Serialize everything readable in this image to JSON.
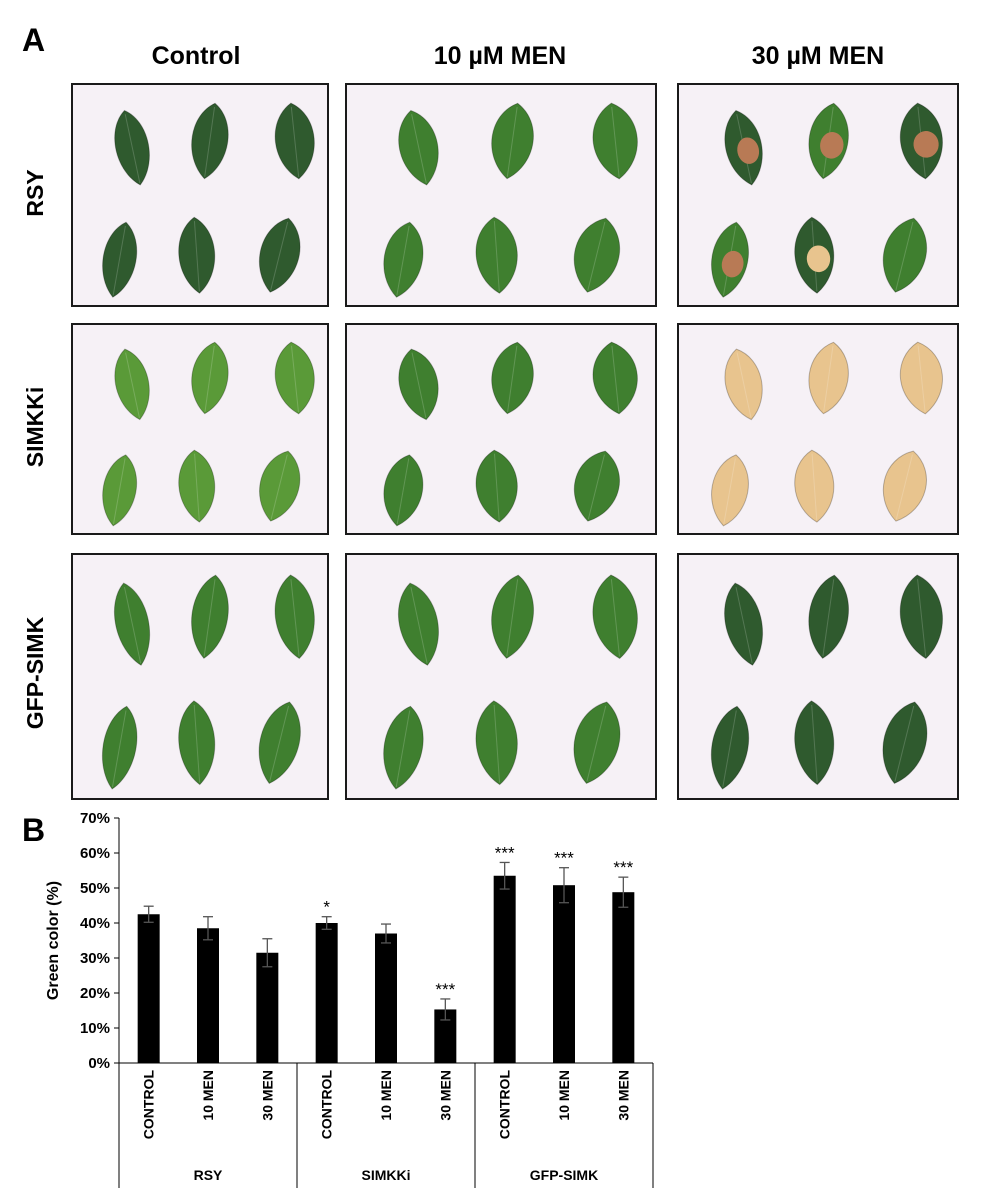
{
  "panel_a": {
    "letter": "A",
    "columns": [
      "Control",
      "10 µM MEN",
      "30 µM MEN"
    ],
    "rows": [
      "RSY",
      "SIMKKi",
      "GFP-SIMK"
    ],
    "leaf_colors": {
      "green_dark": "#2f5a2e",
      "green": "#3f7f2f",
      "green_light": "#5a9a38",
      "necrotic": "#b87a55",
      "bleached": "#e8c48e",
      "background": "#f6f1f6"
    },
    "photos": [
      [
        {
          "state": "green_dark"
        },
        {
          "state": "green"
        },
        {
          "state": "mixed"
        }
      ],
      [
        {
          "state": "green_light"
        },
        {
          "state": "green"
        },
        {
          "state": "bleached"
        }
      ],
      [
        {
          "state": "green"
        },
        {
          "state": "green"
        },
        {
          "state": "green_dark"
        }
      ]
    ]
  },
  "panel_b": {
    "letter": "B"
  },
  "chart_data": {
    "type": "bar",
    "ylabel": "Green color (%)",
    "ylim": [
      0,
      70
    ],
    "yticks": [
      "0%",
      "10%",
      "20%",
      "30%",
      "40%",
      "50%",
      "60%",
      "70%"
    ],
    "categories": [
      "CONTROL",
      "10 MEN",
      "30 MEN",
      "CONTROL",
      "10 MEN",
      "30 MEN",
      "CONTROL",
      "10 MEN",
      "30 MEN"
    ],
    "groups": [
      "RSY",
      "SIMKKi",
      "GFP-SIMK"
    ],
    "values": [
      42.5,
      38.5,
      31.5,
      40.0,
      37.0,
      15.3,
      53.5,
      50.8,
      48.8
    ],
    "errors": [
      2.3,
      3.3,
      4.0,
      1.8,
      2.7,
      3.0,
      3.8,
      5.0,
      4.3
    ],
    "significance": [
      "",
      "",
      "",
      "*",
      "",
      "***",
      "***",
      "***",
      "***"
    ],
    "bar_color": "#000000",
    "grid": false
  }
}
